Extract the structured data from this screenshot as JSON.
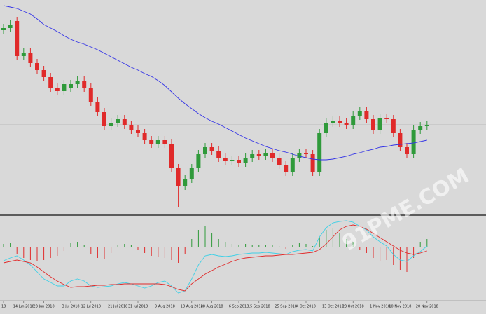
{
  "chart_data": {
    "type": "candlestick",
    "categories": [
      "18",
      null,
      null,
      "14 Jun 2018",
      null,
      null,
      "23 Jun 2018",
      null,
      null,
      null,
      "3 Jul 2018",
      null,
      null,
      "12 Jul 2018",
      null,
      null,
      null,
      "21 Jul 2018",
      null,
      null,
      "31 Jul 2018",
      null,
      null,
      null,
      "9 Aug 2018",
      null,
      null,
      null,
      "18 Aug 2018",
      null,
      null,
      "28 Aug 2018",
      null,
      null,
      null,
      "6 Sep 2018",
      null,
      null,
      "15 Sep 2018",
      null,
      null,
      null,
      "25 Sep 2018",
      null,
      null,
      "4 Oct 2018",
      null,
      null,
      null,
      "13 Oct 2018",
      null,
      null,
      "23 Oct 2018",
      null,
      null,
      null,
      "1 Nov 2018",
      null,
      null,
      "10 Nov 2018",
      null,
      null,
      null,
      "20 Nov 2018"
    ],
    "open": [
      262,
      265,
      275,
      225,
      230,
      215,
      205,
      195,
      180,
      175,
      180,
      185,
      190,
      180,
      160,
      145,
      125,
      130,
      135,
      127,
      120,
      115,
      105,
      100,
      105,
      100,
      65,
      40,
      50,
      65,
      85,
      95,
      90,
      80,
      75,
      77,
      73,
      80,
      85,
      83,
      87,
      80,
      70,
      60,
      80,
      87,
      85,
      60,
      115,
      130,
      133,
      130,
      127,
      140,
      147,
      135,
      120,
      137,
      135,
      115,
      95,
      85,
      120,
      125
    ],
    "high": [
      271,
      276,
      281,
      236,
      236,
      221,
      211,
      201,
      186,
      191,
      191,
      196,
      196,
      186,
      166,
      151,
      136,
      141,
      141,
      133,
      126,
      121,
      111,
      111,
      111,
      106,
      71,
      56,
      71,
      91,
      101,
      101,
      96,
      86,
      83,
      83,
      86,
      91,
      91,
      93,
      93,
      86,
      76,
      86,
      93,
      93,
      91,
      121,
      136,
      139,
      139,
      136,
      146,
      153,
      153,
      141,
      143,
      143,
      141,
      121,
      101,
      126,
      131,
      133
    ],
    "low": [
      256,
      259,
      219,
      219,
      209,
      199,
      189,
      174,
      169,
      169,
      174,
      179,
      174,
      154,
      139,
      119,
      119,
      124,
      121,
      114,
      109,
      99,
      94,
      94,
      94,
      59,
      10,
      34,
      44,
      59,
      79,
      84,
      74,
      69,
      69,
      67,
      67,
      74,
      77,
      77,
      74,
      64,
      54,
      54,
      74,
      79,
      54,
      54,
      109,
      124,
      124,
      121,
      121,
      134,
      129,
      114,
      114,
      129,
      109,
      89,
      79,
      79,
      114,
      119
    ],
    "close": [
      265,
      270,
      225,
      230,
      215,
      205,
      195,
      180,
      175,
      185,
      185,
      190,
      180,
      160,
      145,
      125,
      130,
      135,
      127,
      120,
      115,
      105,
      100,
      105,
      100,
      65,
      40,
      50,
      65,
      85,
      95,
      90,
      80,
      75,
      77,
      73,
      80,
      85,
      83,
      87,
      80,
      70,
      60,
      80,
      87,
      85,
      60,
      115,
      130,
      133,
      130,
      127,
      140,
      147,
      135,
      120,
      137,
      135,
      115,
      95,
      85,
      120,
      125,
      127
    ],
    "ma": [
      297,
      295,
      293,
      289,
      285,
      278,
      270,
      265,
      260,
      254,
      249,
      245,
      242,
      238,
      234,
      229,
      224,
      219,
      214,
      209,
      205,
      200,
      196,
      190,
      183,
      174,
      165,
      157,
      150,
      143,
      137,
      132,
      128,
      123,
      118,
      113,
      108,
      104,
      100,
      96,
      93,
      90,
      88,
      85,
      82,
      80,
      78,
      77,
      77,
      78,
      80,
      82,
      85,
      87,
      90,
      92,
      95,
      96,
      98,
      99,
      100,
      101,
      103,
      105
    ],
    "up_color": "#2f9a3a",
    "down_color": "#e02a2a",
    "ma_color": "#3434e6",
    "ylim": [
      0,
      305
    ],
    "macd": {
      "ylim": [
        -75,
        43
      ],
      "histogram": [
        5,
        6,
        -10,
        -15,
        -18,
        -20,
        -18,
        -15,
        -12,
        -5,
        6,
        8,
        4,
        -10,
        -15,
        -17,
        -8,
        3,
        5,
        4,
        -3,
        -8,
        -12,
        -14,
        -15,
        -18,
        -22,
        -10,
        12,
        25,
        30,
        20,
        12,
        8,
        5,
        4,
        5,
        4,
        3,
        4,
        3,
        2,
        -2,
        4,
        6,
        5,
        2,
        15,
        25,
        28,
        20,
        12,
        8,
        -4,
        -8,
        -15,
        -20,
        -18,
        -25,
        -32,
        -35,
        -15,
        8,
        12
      ],
      "macd_line": [
        -19,
        -15,
        -12,
        -18,
        -25,
        -35,
        -45,
        -50,
        -55,
        -55,
        -48,
        -45,
        -48,
        -55,
        -57,
        -56,
        -55,
        -52,
        -50,
        -52,
        -55,
        -58,
        -55,
        -50,
        -48,
        -55,
        -65,
        -62,
        -45,
        -25,
        -12,
        -10,
        -12,
        -13,
        -12,
        -10,
        -9,
        -8,
        -8,
        -7,
        -8,
        -9,
        -10,
        -6,
        -4,
        -3,
        -5,
        15,
        28,
        35,
        37,
        38,
        36,
        30,
        25,
        15,
        8,
        2,
        -10,
        -18,
        -20,
        -12,
        -6,
        2
      ],
      "signal_line": [
        -22,
        -20,
        -18,
        -20,
        -22,
        -28,
        -35,
        -42,
        -48,
        -53,
        -57,
        -56,
        -56,
        -55,
        -54,
        -54,
        -53,
        -53,
        -52,
        -52,
        -52,
        -52,
        -52,
        -52,
        -53,
        -56,
        -60,
        -62,
        -52,
        -45,
        -38,
        -33,
        -28,
        -24,
        -20,
        -17,
        -15,
        -14,
        -13,
        -12,
        -12,
        -11,
        -10,
        -10,
        -9,
        -8,
        -7,
        -3,
        5,
        15,
        25,
        30,
        32,
        30,
        26,
        20,
        14,
        8,
        2,
        -4,
        -8,
        -10,
        -8,
        -5
      ],
      "macd_color": "#3fd0e6",
      "signal_color": "#e02a2a"
    },
    "watermark": "91PME.COM"
  }
}
